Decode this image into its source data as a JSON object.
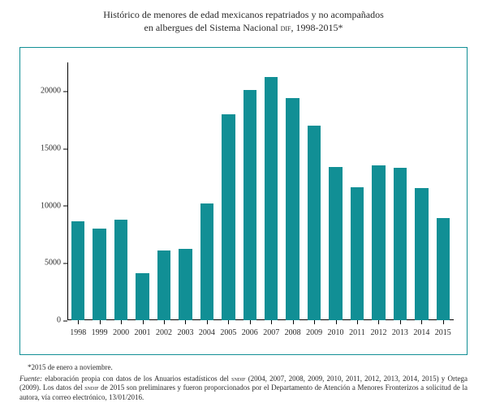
{
  "title_line1": "Histórico de menores de edad mexicanos repatriados y no acompañados",
  "title_line2": "en albergues del Sistema Nacional DIF, 1998-2015*",
  "title_fontsize": 12,
  "chart": {
    "type": "bar",
    "categories": [
      "1998",
      "1999",
      "2000",
      "2001",
      "2002",
      "2003",
      "2004",
      "2005",
      "2006",
      "2007",
      "2008",
      "2009",
      "2010",
      "2011",
      "2012",
      "2013",
      "2014",
      "2015"
    ],
    "values": [
      8600,
      8000,
      8800,
      4100,
      6100,
      6200,
      10200,
      18000,
      20100,
      21200,
      19400,
      17000,
      13400,
      11600,
      13500,
      13300,
      11500,
      8900
    ],
    "bar_color": "#118f95",
    "bar_width": 0.62,
    "ylim": [
      0,
      22500
    ],
    "yticks": [
      0,
      5000,
      10000,
      15000,
      20000
    ],
    "axis_color": "#000000",
    "tick_fontsize": 10,
    "background_color": "#ffffff",
    "border_color": "#118f95",
    "border_width": 1
  },
  "footnote_asterisk": "*2015 de enero a noviembre.",
  "footnote_source_label": "Fuente:",
  "footnote_source_text": " elaboración propia con datos de los Anuarios estadísticos del SNDIF (2004, 2007, 2008, 2009, 2010, 2011, 2012, 2013, 2014, 2015) y Ortega (2009). Los datos del SNDIF de 2015 son preliminares y fueron proporcionados por el Departamento de Atención a Menores Fronterizos a solicitud de la autora, vía correo electrónico, 13/01/2016.",
  "footnote_fontsize": 9
}
